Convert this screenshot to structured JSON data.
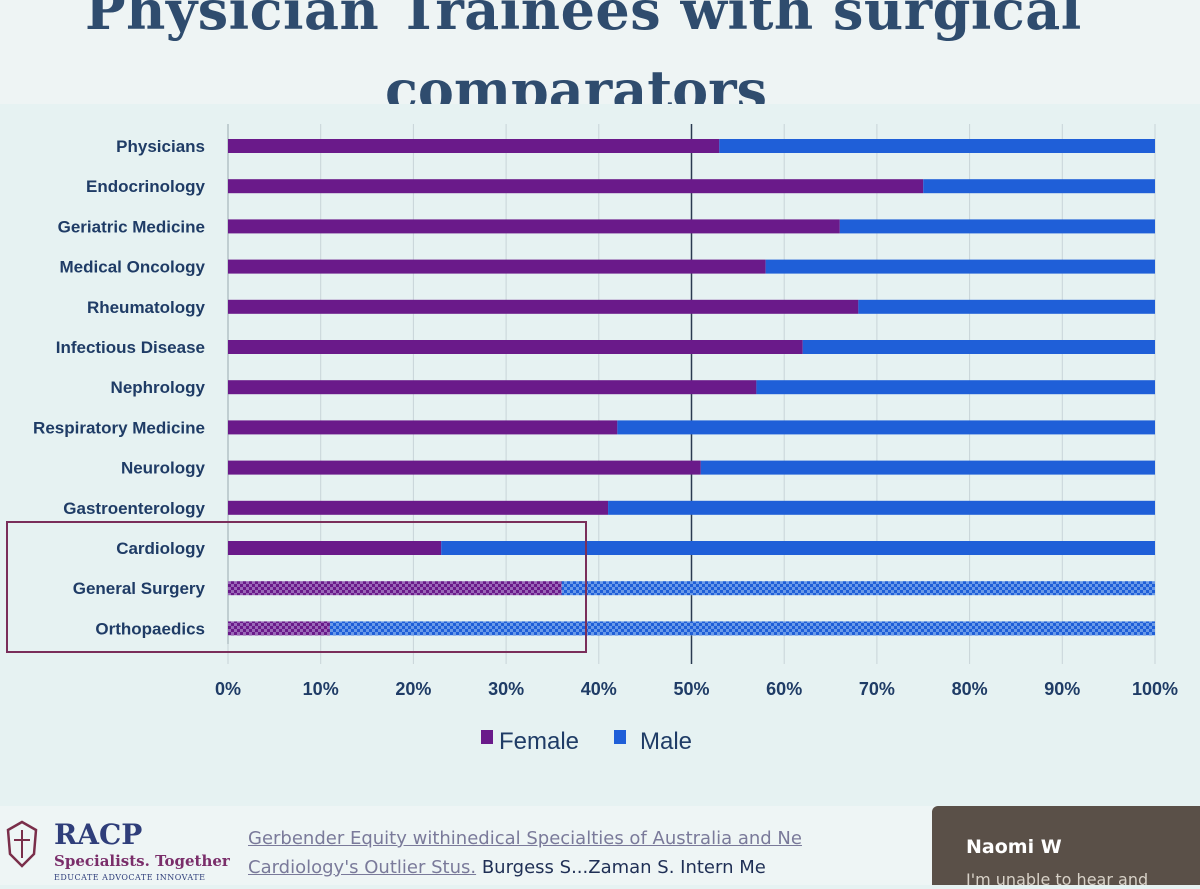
{
  "title": {
    "line1": "Physician Trainees with surgical",
    "line2": "comparators"
  },
  "chart_data": {
    "type": "bar",
    "orientation": "horizontal",
    "stacked": "percent",
    "categories": [
      "Physicians",
      "Endocrinology",
      "Geriatric Medicine",
      "Medical Oncology",
      "Rheumatology",
      "Infectious Disease",
      "Nephrology",
      "Respiratory Medicine",
      "Neurology",
      "Gastroenterology",
      "Cardiology",
      "General Surgery",
      "Orthopaedics"
    ],
    "series": [
      {
        "name": "Female",
        "color": "#6a1a8a",
        "values": [
          53,
          75,
          66,
          58,
          68,
          62,
          57,
          42,
          51,
          41,
          23,
          36,
          11
        ]
      },
      {
        "name": "Male",
        "color": "#1f5fd8",
        "values": [
          47,
          25,
          34,
          42,
          32,
          38,
          43,
          58,
          49,
          59,
          77,
          64,
          89
        ]
      }
    ],
    "patterned_categories": [
      "General Surgery",
      "Orthopaedics"
    ],
    "highlighted_categories": [
      "Cardiology",
      "General Surgery",
      "Orthopaedics"
    ],
    "xlim": [
      0,
      100
    ],
    "xticks": [
      "0%",
      "10%",
      "20%",
      "30%",
      "40%",
      "50%",
      "60%",
      "70%",
      "80%",
      "90%",
      "100%"
    ],
    "grid": true,
    "legend_position": "bottom"
  },
  "footer": {
    "logo_name": "RACP",
    "logo_tagline": "Specialists. Together",
    "logo_subtitle": "EDUCATE ADVOCATE INNOVATE",
    "reference_line1": "Gerbender Equity withinedical Specialties of Australia and Ne",
    "reference_line2_link": "Cardiology's Outlier Stus.",
    "reference_line2_rest": "Burgess S...Zaman S. Intern Me",
    "chat_name": "Naomi W",
    "chat_message": "I'm unable to hear and"
  }
}
